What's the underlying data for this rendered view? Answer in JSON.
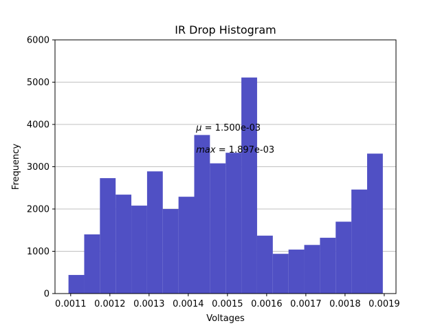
{
  "chart_data": {
    "type": "bar",
    "title": "IR Drop Histogram",
    "xlabel": "Voltages",
    "ylabel": "Frequency",
    "xlim": [
      0.00106,
      0.00193
    ],
    "ylim": [
      0,
      6000
    ],
    "grid": "y",
    "bar_color": "#5050c4",
    "bin_edges": [
      0.0010944,
      0.0011345,
      0.0011746,
      0.0012147,
      0.0012548,
      0.0012949,
      0.001335,
      0.0013751,
      0.0014152,
      0.0014553,
      0.0014954,
      0.0015355,
      0.0015756,
      0.0016157,
      0.0016558,
      0.0016959,
      0.001736,
      0.0017761,
      0.0018162,
      0.0018563,
      0.0018964
    ],
    "values": [
      440,
      1400,
      2730,
      2340,
      2080,
      2890,
      2000,
      2290,
      3750,
      3080,
      3330,
      5110,
      1370,
      940,
      1040,
      1150,
      1320,
      1700,
      2460,
      3310
    ],
    "x_ticks": [
      "0.0011",
      "0.0012",
      "0.0013",
      "0.0014",
      "0.0015",
      "0.0016",
      "0.0017",
      "0.0018",
      "0.0019"
    ],
    "x_tick_values": [
      0.0011,
      0.0012,
      0.0013,
      0.0014,
      0.0015,
      0.0016,
      0.0017,
      0.0018,
      0.0019
    ],
    "y_ticks": [
      "0",
      "1000",
      "2000",
      "3000",
      "4000",
      "5000",
      "6000"
    ],
    "y_tick_values": [
      0,
      1000,
      2000,
      3000,
      4000,
      5000,
      6000
    ],
    "annotations": [
      {
        "symbol": "μ",
        "text": " = 1.500e-03",
        "x": 0.00142,
        "y": 3850
      },
      {
        "symbol": "max",
        "text": " = 1.897e-03",
        "x": 0.00142,
        "y": 3330
      }
    ]
  }
}
